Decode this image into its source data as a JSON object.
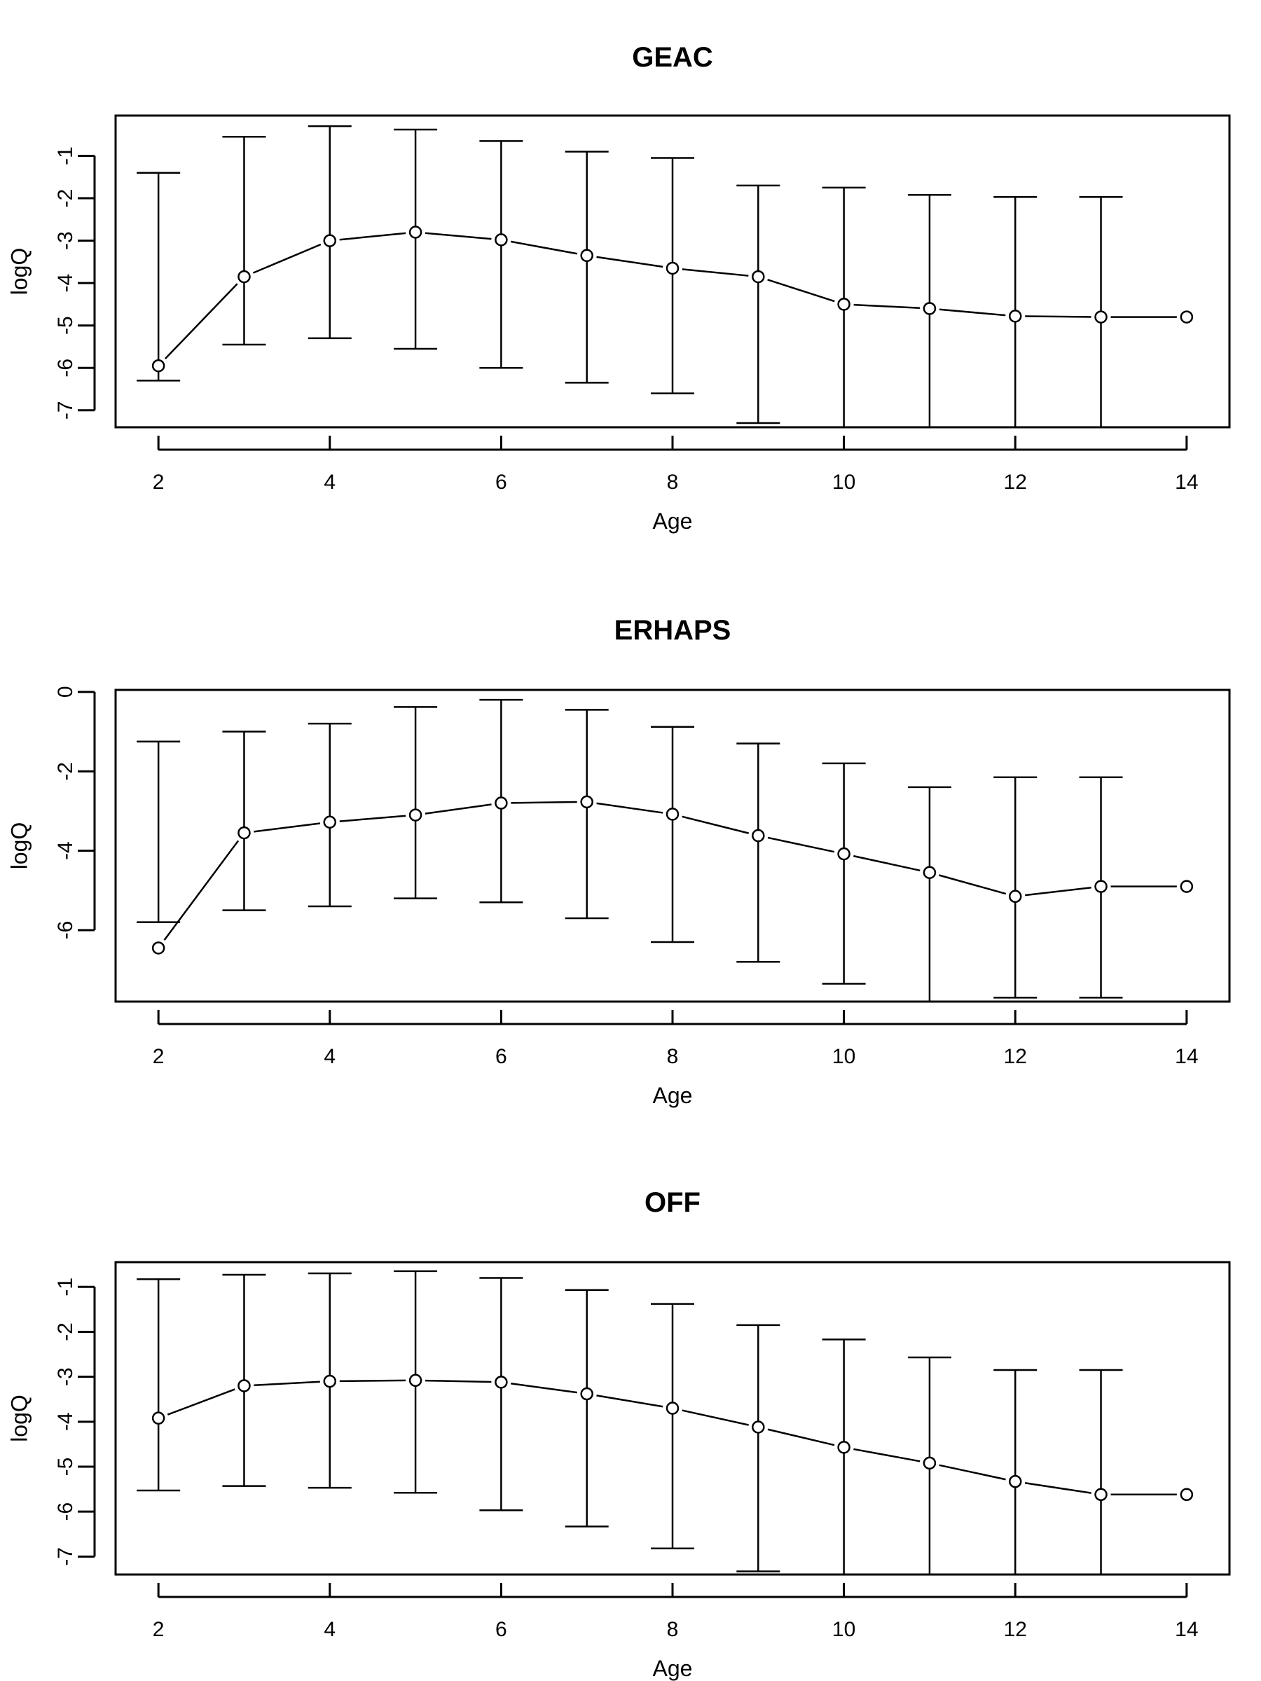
{
  "chart_data": [
    {
      "type": "line",
      "title": "GEAC",
      "xlabel": "Age",
      "ylabel": "logQ",
      "xlim": [
        1.5,
        14.5
      ],
      "ylim": [
        -7.4,
        -0.05
      ],
      "x_ticks": [
        2,
        4,
        6,
        8,
        10,
        12,
        14
      ],
      "x_tick_labels": [
        "2",
        "4",
        "6",
        "8",
        "10",
        "12",
        "14"
      ],
      "y_ticks": [
        -1,
        -2,
        -3,
        -4,
        -5,
        -6,
        -7
      ],
      "y_tick_labels": [
        "-1",
        "-2",
        "-3",
        "-4",
        "-5",
        "-6",
        "-7"
      ],
      "y_tick_rotated": true,
      "grid": false,
      "x": [
        2,
        3,
        4,
        5,
        6,
        7,
        8,
        9,
        10,
        11,
        12,
        13,
        14
      ],
      "series": [
        {
          "values": [
            -5.95,
            -3.85,
            -3.0,
            -2.8,
            -2.98,
            -3.35,
            -3.65,
            -3.85,
            -4.5,
            -4.6,
            -4.78,
            -4.8,
            -4.8
          ],
          "upper": [
            -1.4,
            -0.55,
            -0.3,
            -0.38,
            -0.65,
            -0.9,
            -1.05,
            -1.7,
            -1.75,
            -1.92,
            -1.97,
            -1.97,
            null
          ],
          "lower": [
            -6.3,
            -5.45,
            -5.3,
            -5.55,
            -6.0,
            -6.35,
            -6.6,
            -7.3,
            -7.4,
            -7.4,
            -7.4,
            -7.4,
            null
          ]
        }
      ]
    },
    {
      "type": "line",
      "title": "ERHAPS",
      "xlabel": "Age",
      "ylabel": "logQ",
      "xlim": [
        1.5,
        14.5
      ],
      "ylim": [
        -7.8,
        0.05
      ],
      "x_ticks": [
        2,
        4,
        6,
        8,
        10,
        12,
        14
      ],
      "x_tick_labels": [
        "2",
        "4",
        "6",
        "8",
        "10",
        "12",
        "14"
      ],
      "y_ticks": [
        0,
        -2,
        -4,
        -6
      ],
      "y_tick_labels": [
        "0",
        "-2",
        "-4",
        "-6"
      ],
      "y_tick_rotated": true,
      "grid": false,
      "x": [
        2,
        3,
        4,
        5,
        6,
        7,
        8,
        9,
        10,
        11,
        12,
        13,
        14
      ],
      "series": [
        {
          "values": [
            -6.45,
            -3.55,
            -3.28,
            -3.1,
            -2.8,
            -2.77,
            -3.08,
            -3.62,
            -4.08,
            -4.55,
            -5.15,
            -4.9,
            -4.9
          ],
          "upper": [
            -1.25,
            -1.0,
            -0.8,
            -0.38,
            -0.2,
            -0.45,
            -0.88,
            -1.3,
            -1.8,
            -2.4,
            -2.15,
            -2.15,
            null
          ],
          "lower": [
            -5.8,
            -5.5,
            -5.4,
            -5.2,
            -5.3,
            -5.7,
            -6.3,
            -6.8,
            -7.35,
            -7.8,
            -7.7,
            -7.7,
            null
          ]
        }
      ]
    },
    {
      "type": "line",
      "title": "OFF",
      "xlabel": "Age",
      "ylabel": "logQ",
      "xlim": [
        1.5,
        14.5
      ],
      "ylim": [
        -7.4,
        -0.45
      ],
      "x_ticks": [
        2,
        4,
        6,
        8,
        10,
        12,
        14
      ],
      "x_tick_labels": [
        "2",
        "4",
        "6",
        "8",
        "10",
        "12",
        "14"
      ],
      "y_ticks": [
        -1,
        -2,
        -3,
        -4,
        -5,
        -6,
        -7
      ],
      "y_tick_labels": [
        "-1",
        "-2",
        "-3",
        "-4",
        "-5",
        "-6",
        "-7"
      ],
      "y_tick_rotated": true,
      "grid": false,
      "x": [
        2,
        3,
        4,
        5,
        6,
        7,
        8,
        9,
        10,
        11,
        12,
        13,
        14
      ],
      "series": [
        {
          "values": [
            -3.92,
            -3.2,
            -3.1,
            -3.08,
            -3.12,
            -3.38,
            -3.7,
            -4.12,
            -4.57,
            -4.92,
            -5.33,
            -5.62,
            -5.62
          ],
          "upper": [
            -0.83,
            -0.73,
            -0.7,
            -0.65,
            -0.8,
            -1.07,
            -1.38,
            -1.85,
            -2.17,
            -2.57,
            -2.85,
            -2.85,
            null
          ],
          "lower": [
            -5.53,
            -5.43,
            -5.47,
            -5.58,
            -5.97,
            -6.33,
            -6.82,
            -7.33,
            -7.4,
            -7.4,
            -7.4,
            -7.4,
            null
          ]
        }
      ]
    }
  ]
}
